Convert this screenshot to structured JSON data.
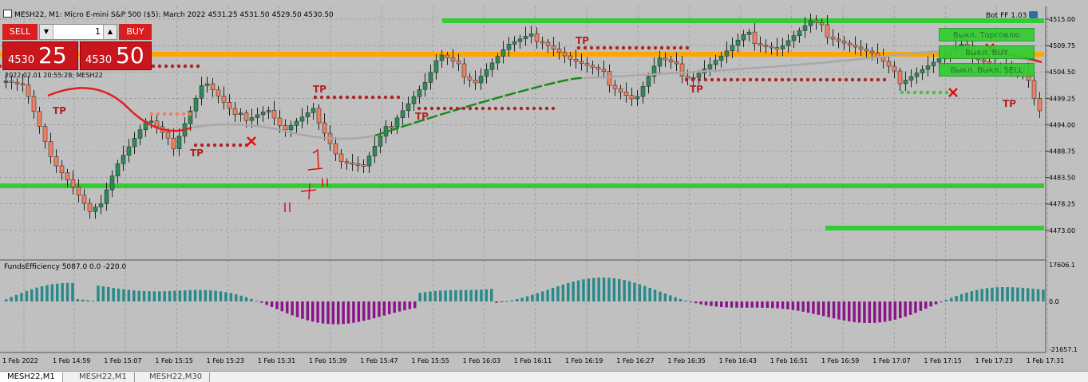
{
  "window": {
    "title": "MESH22, M1:  Micro E-mini S&P 500 ($5): March 2022  4531.25 4531.50 4529.50 4530.50",
    "sub_label": "2022.02.01 20:55:28; MESH22"
  },
  "trade_panel": {
    "sell_label": "SELL",
    "buy_label": "BUY",
    "lot_value": "1",
    "sell_price_small": "4530",
    "sell_price_big": "25",
    "buy_price_small": "4530",
    "buy_price_big": "50"
  },
  "bot": {
    "label": "Bot FF 1.03",
    "btn_trade": "Выкл. Торговлю",
    "btn_buy": "Выкл. BUY",
    "btn_sell": "Выкл. SELL",
    "btn_close": "Выкл."
  },
  "indicator": {
    "title": "FundsEfficiency 5087.0 0.0 -220.0",
    "axis": [
      "17606.1",
      "0.0",
      "-21657.1"
    ]
  },
  "price_axis": [
    "4515.00",
    "4509.75",
    "4504.50",
    "4499.25",
    "4494.00",
    "4488.75",
    "4483.50",
    "4478.25",
    "4473.00"
  ],
  "time_axis": [
    "1 Feb 2022",
    "1 Feb 14:59",
    "1 Feb 15:07",
    "1 Feb 15:15",
    "1 Feb 15:23",
    "1 Feb 15:31",
    "1 Feb 15:39",
    "1 Feb 15:47",
    "1 Feb 15:55",
    "1 Feb 16:03",
    "1 Feb 16:11",
    "1 Feb 16:19",
    "1 Feb 16:27",
    "1 Feb 16:35",
    "1 Feb 16:43",
    "1 Feb 16:51",
    "1 Feb 16:59",
    "1 Feb 17:07",
    "1 Feb 17:15",
    "1 Feb 17:23",
    "1 Feb 17:31"
  ],
  "tp_label": "TP",
  "tabs": [
    "MESH22,M1",
    "MESH22,M1",
    "MESH22,M30"
  ],
  "colors": {
    "bull": "#2e8b57",
    "bear": "#f08060",
    "level_green": "#32cd32",
    "level_orange": "#ffa500",
    "ma_red": "#e02020",
    "ma_green": "#1a8a1a",
    "hist_teal": "#2a8a8a",
    "hist_purple": "#8b148b",
    "dots": "#b22222"
  }
}
